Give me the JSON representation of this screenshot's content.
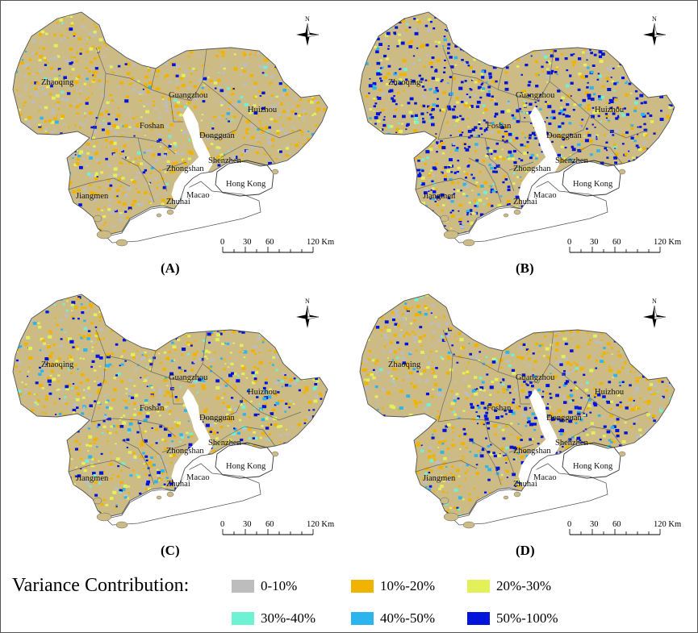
{
  "panels": [
    {
      "id": "A",
      "label": "(A)",
      "intensity": "low"
    },
    {
      "id": "B",
      "label": "(B)",
      "intensity": "high"
    },
    {
      "id": "C",
      "label": "(C)",
      "intensity": "medium"
    },
    {
      "id": "D",
      "label": "(D)",
      "intensity": "mixed"
    }
  ],
  "places": [
    "Zhaoqing",
    "Guangzhou",
    "Huizhou",
    "Foshan",
    "Dongguan",
    "Shenzhen",
    "Zhongshan",
    "Hong Kong",
    "Jiangmen",
    "Zhuhai",
    "Macao"
  ],
  "scale_bar": {
    "ticks": [
      "0",
      "30",
      "60",
      "120 Km"
    ]
  },
  "north_label": "N",
  "legend": {
    "title": "Variance Contribution:",
    "items": [
      {
        "label": "0-10%",
        "color": "#bdbdbd"
      },
      {
        "label": "10%-20%",
        "color": "#f0b400"
      },
      {
        "label": "20%-30%",
        "color": "#e4f05a"
      },
      {
        "label": "30%-40%",
        "color": "#6ef2d4"
      },
      {
        "label": "40%-50%",
        "color": "#2bb4ee"
      },
      {
        "label": "50%-100%",
        "color": "#0014dc"
      }
    ]
  },
  "map_colors": {
    "base": "#cdbb85",
    "outline": "#555555",
    "water": "#ffffff"
  }
}
